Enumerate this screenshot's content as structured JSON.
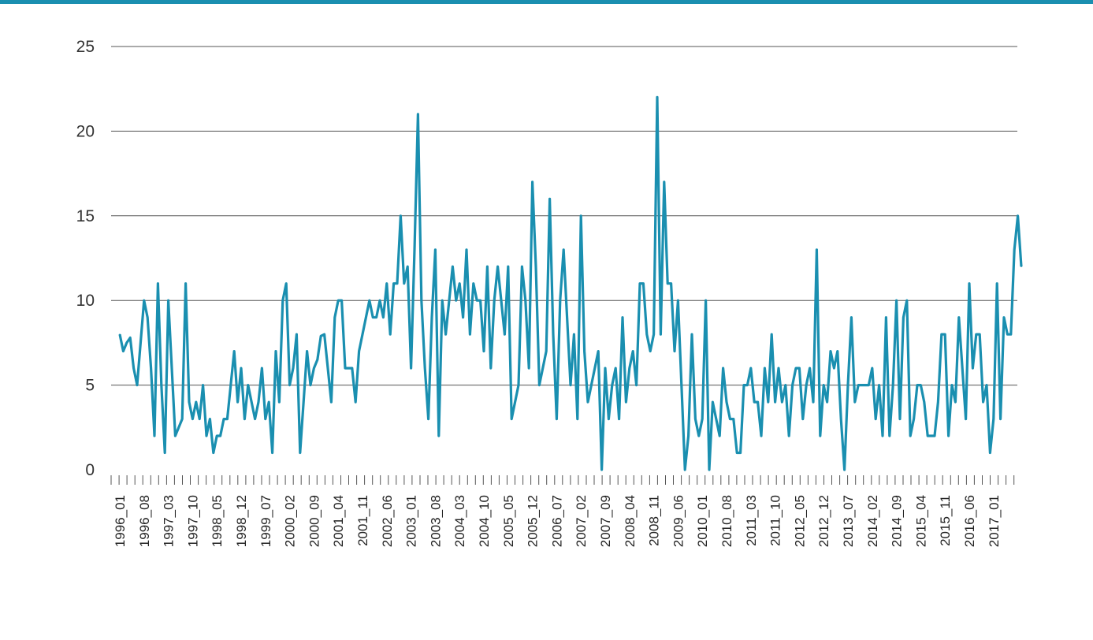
{
  "colors": {
    "accent": "#1a8fb0",
    "grid": "#555555",
    "text": "#333333"
  },
  "chart_data": {
    "type": "line",
    "title": "",
    "xlabel": "",
    "ylabel": "",
    "ylim": [
      0,
      25
    ],
    "yticks": [
      "0",
      "5",
      "10",
      "15",
      "20",
      "25"
    ],
    "grid": true,
    "legend": "none",
    "x_tick_labels": [
      "1996_01",
      "1996_08",
      "1997_03",
      "1997_10",
      "1998_05",
      "1998_12",
      "1999_07",
      "2000_02",
      "2000_09",
      "2001_04",
      "2001_11",
      "2002_06",
      "2003_01",
      "2003_08",
      "2004_03",
      "2004_10",
      "2005_05",
      "2005_12",
      "2006_07",
      "2007_02",
      "2007_09",
      "2008_04",
      "2008_11",
      "2009_06",
      "2010_01",
      "2010_08",
      "2011_03",
      "2011_10",
      "2012_05",
      "2012_12",
      "2013_07",
      "2014_02",
      "2014_09",
      "2015_04",
      "2015_11",
      "2016_06",
      "2017_01"
    ],
    "x_start": "1996_01",
    "x_step": "1 month",
    "series": [
      {
        "values": [
          8,
          7,
          7.5,
          7.8,
          6,
          5,
          7.5,
          10,
          9,
          6,
          2,
          11,
          5,
          1,
          10,
          6,
          2,
          2.5,
          3,
          11,
          4,
          3,
          4,
          3,
          5,
          2,
          3,
          1,
          2,
          2,
          3,
          3,
          5,
          7,
          4,
          6,
          3,
          5,
          4,
          3,
          4,
          6,
          3,
          4,
          1,
          7,
          4,
          10,
          11,
          5,
          6,
          8,
          1,
          4,
          7,
          5,
          6,
          6.5,
          7.9,
          8,
          6,
          4,
          9,
          10,
          10,
          6,
          6,
          6,
          4,
          7,
          8,
          9,
          10,
          9,
          9,
          10,
          9,
          11,
          8,
          11,
          11,
          15,
          11,
          12,
          6,
          13,
          21,
          10,
          6,
          3,
          9,
          13,
          2,
          10,
          8,
          10,
          12,
          10,
          11,
          9,
          13,
          8,
          11,
          10,
          10,
          7,
          12,
          6,
          10,
          12,
          10,
          8,
          12,
          3,
          4,
          5,
          12,
          10,
          6,
          17,
          12,
          5,
          6,
          7,
          16,
          8,
          3,
          10,
          13,
          9,
          5,
          8,
          3,
          15,
          7,
          4,
          5,
          6,
          7,
          0,
          6,
          3,
          5,
          6,
          3,
          9,
          4,
          6,
          7,
          5,
          11,
          11,
          8,
          7,
          8,
          22,
          8,
          17,
          11,
          11,
          7,
          10,
          5,
          0,
          2,
          8,
          3,
          2,
          3,
          10,
          0,
          4,
          3,
          2,
          6,
          4,
          3,
          3,
          1,
          1,
          5,
          5,
          6,
          4,
          4,
          2,
          6,
          4,
          8,
          4,
          6,
          4,
          5,
          2,
          5,
          6,
          6,
          3,
          5,
          6,
          4,
          13,
          2,
          5,
          4,
          7,
          6,
          7,
          3,
          0,
          5,
          9,
          4,
          5,
          5,
          5,
          5,
          6,
          3,
          5,
          2,
          9,
          2,
          5,
          10,
          3,
          9,
          10,
          2,
          3,
          5,
          5,
          4,
          2,
          2,
          2,
          4,
          8,
          8,
          2,
          5,
          4,
          9,
          6,
          3,
          11,
          6,
          8,
          8,
          4,
          5,
          1,
          3,
          11,
          3,
          9,
          8,
          8,
          13,
          15,
          12
        ]
      }
    ]
  }
}
